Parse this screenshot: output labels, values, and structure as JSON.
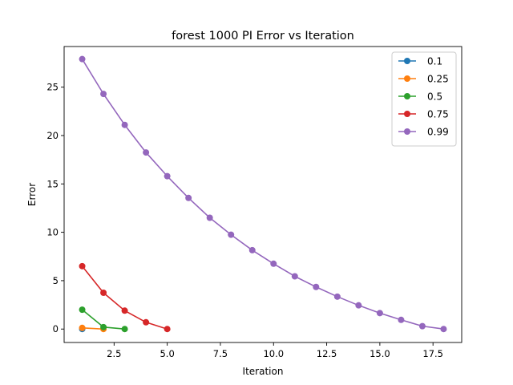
{
  "chart_data": {
    "type": "line",
    "title": "forest 1000 PI Error vs Iteration",
    "xlabel": "Iteration",
    "ylabel": "Error",
    "xlim": [
      0.15,
      18.85
    ],
    "ylim": [
      -1.39,
      29.2
    ],
    "xticks": [
      2.5,
      5.0,
      7.5,
      10.0,
      12.5,
      15.0,
      17.5
    ],
    "xtick_labels": [
      "2.5",
      "5.0",
      "7.5",
      "10.0",
      "12.5",
      "15.0",
      "17.5"
    ],
    "yticks": [
      0,
      5,
      10,
      15,
      20,
      25
    ],
    "ytick_labels": [
      "0",
      "5",
      "10",
      "15",
      "20",
      "25"
    ],
    "grid": false,
    "legend_position": "top-right",
    "series": [
      {
        "name": "0.1",
        "color": "#1f77b4",
        "x": [
          1
        ],
        "y": [
          0.0
        ]
      },
      {
        "name": "0.25",
        "color": "#ff7f0e",
        "x": [
          1,
          2
        ],
        "y": [
          0.12,
          0.0
        ]
      },
      {
        "name": "0.5",
        "color": "#2ca02c",
        "x": [
          1,
          2,
          3
        ],
        "y": [
          2.0,
          0.2,
          0.0
        ]
      },
      {
        "name": "0.75",
        "color": "#d62728",
        "x": [
          1,
          2,
          3,
          4,
          5
        ],
        "y": [
          6.5,
          3.75,
          1.9,
          0.7,
          0.0
        ]
      },
      {
        "name": "0.99",
        "color": "#9467bd",
        "x": [
          1,
          2,
          3,
          4,
          5,
          6,
          7,
          8,
          9,
          10,
          11,
          12,
          13,
          14,
          15,
          16,
          17,
          18
        ],
        "y": [
          27.9,
          24.3,
          21.1,
          18.25,
          15.8,
          13.55,
          11.5,
          9.75,
          8.15,
          6.75,
          5.45,
          4.35,
          3.35,
          2.45,
          1.65,
          0.95,
          0.3,
          0.0
        ]
      }
    ]
  }
}
